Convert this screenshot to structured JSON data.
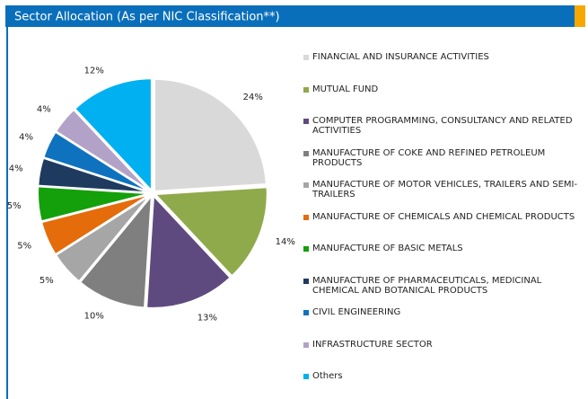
{
  "chart_data": {
    "type": "pie",
    "title": "Sector Allocation (As per NIC Classification**)",
    "categories": [
      "FINANCIAL AND INSURANCE ACTIVITIES",
      "MUTUAL FUND",
      "COMPUTER PROGRAMMING, CONSULTANCY AND RELATED ACTIVITIES",
      "MANUFACTURE OF COKE AND REFINED PETROLEUM PRODUCTS",
      "MANUFACTURE OF MOTOR VEHICLES, TRAILERS AND SEMI-TRAILERS",
      "MANUFACTURE OF CHEMICALS AND CHEMICAL PRODUCTS",
      "MANUFACTURE OF BASIC METALS",
      "MANUFACTURE OF PHARMACEUTICALS, MEDICINAL CHEMICAL AND BOTANICAL PRODUCTS",
      "CIVIL ENGINEERING",
      "INFRASTRUCTURE SECTOR",
      "Others"
    ],
    "values": [
      24,
      14,
      13,
      10,
      5,
      5,
      5,
      4,
      4,
      4,
      12
    ],
    "value_labels": [
      "24%",
      "14%",
      "13%",
      "10%",
      "5%",
      "5%",
      "5%",
      "4%",
      "4%",
      "4%",
      "12%"
    ],
    "colors": [
      "#d9d9d9",
      "#8faa4a",
      "#5f4a7f",
      "#7f7f7f",
      "#a6a6a6",
      "#e46c0a",
      "#14a00a",
      "#1f3a5f",
      "#0f72bf",
      "#b3a2c7",
      "#00b0f0"
    ]
  }
}
